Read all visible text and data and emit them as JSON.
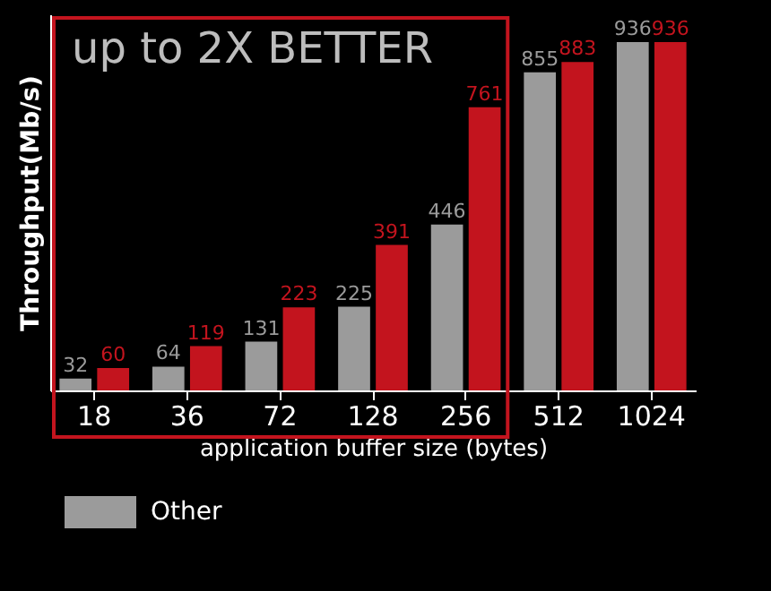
{
  "chart_data": {
    "type": "bar",
    "ylabel": "Throughput(Mb/s)",
    "xlabel": "application buffer size (bytes)",
    "categories": [
      "18",
      "36",
      "72",
      "128",
      "256",
      "512",
      "1024"
    ],
    "series": [
      {
        "name": "Other",
        "color": "#9b9b9b",
        "values": [
          32,
          64,
          131,
          225,
          446,
          855,
          936
        ]
      },
      {
        "color": "#c3141e",
        "values": [
          60,
          119,
          223,
          391,
          761,
          883,
          936
        ]
      }
    ],
    "data_labels": true,
    "legend": "bottom",
    "relative": false,
    "annotations": [
      "up to 2X BETTER"
    ]
  }
}
